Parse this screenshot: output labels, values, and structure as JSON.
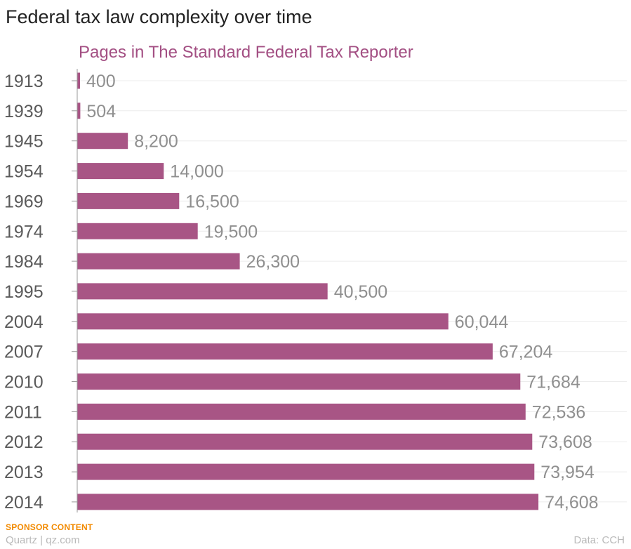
{
  "title": "Federal tax law complexity over time",
  "footer": {
    "sponsor": "SPONSOR CONTENT",
    "brand": "Quartz | qz.com",
    "source": "Data: CCH"
  },
  "colors": {
    "bar": "#a85585",
    "subtitle": "#a34f83",
    "sponsor": "#f28a00",
    "tick_label": "#5a5a5a",
    "value_label": "#8f8f8f",
    "grid": "#ececec",
    "axis": "#9a9a9a"
  },
  "chart_data": {
    "type": "bar",
    "orientation": "horizontal",
    "title": "Federal tax law complexity over time",
    "subtitle": "Pages in The Standard Federal Tax Reporter",
    "categories": [
      "1913",
      "1939",
      "1945",
      "1954",
      "1969",
      "1974",
      "1984",
      "1995",
      "2004",
      "2007",
      "2010",
      "2011",
      "2012",
      "2013",
      "2014"
    ],
    "values": [
      400,
      504,
      8200,
      14000,
      16500,
      19500,
      26300,
      40500,
      60044,
      67204,
      71684,
      72536,
      73608,
      73954,
      74608
    ],
    "value_labels": [
      "400",
      "504",
      "8,200",
      "14,000",
      "16,500",
      "19,500",
      "26,300",
      "40,500",
      "60,044",
      "67,204",
      "71,684",
      "72,536",
      "73,608",
      "73,954",
      "74,608"
    ],
    "xlim": [
      0,
      88000
    ],
    "grid": true,
    "xlabel": "",
    "ylabel": ""
  }
}
